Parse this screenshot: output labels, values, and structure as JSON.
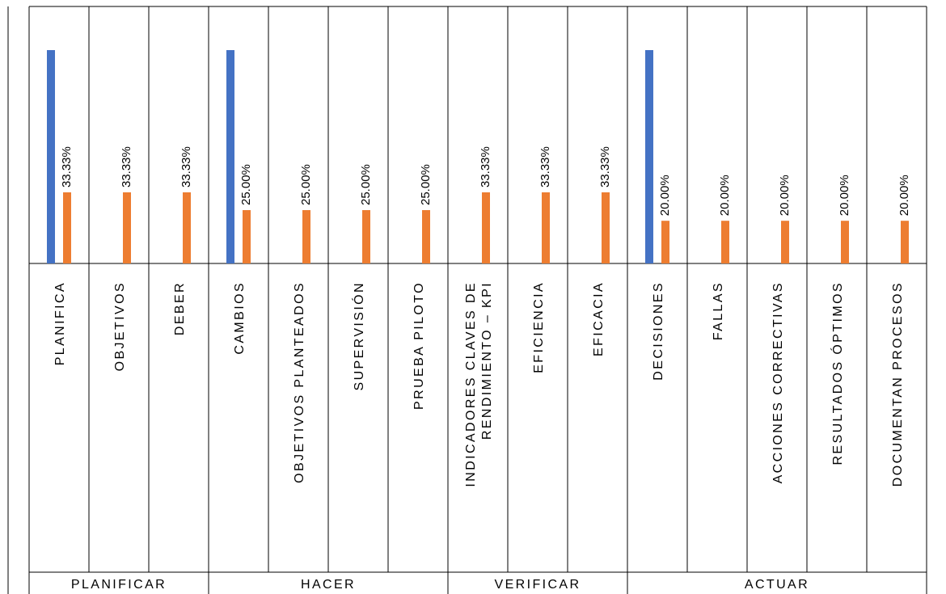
{
  "chart_data": {
    "type": "bar",
    "groups": [
      {
        "label": "PLANIFICAR",
        "categories": [
          "PLANIFICA",
          "OBJETIVOS",
          "DEBER"
        ]
      },
      {
        "label": "HACER",
        "categories": [
          "CAMBIOS",
          "OBJETIVOS PLANTEADOS",
          "SUPERVISIÓN",
          "PRUEBA PILOTO"
        ]
      },
      {
        "label": "VERIFICAR",
        "categories": [
          [
            "INDICADORES CLAVES DE",
            "RENDIMIENTO – KPI"
          ],
          "EFICIENCIA",
          "EFICACIA"
        ]
      },
      {
        "label": "ACTUAR",
        "categories": [
          "DECISIONES",
          "FALLAS",
          "ACCIONES CORRECTIVAS",
          "RESULTADOS ÓPTIMOS",
          "DOCUMENTAN PROCESOS"
        ]
      }
    ],
    "series": [
      {
        "color": "#4472C4",
        "values": [
          1,
          null,
          null,
          1,
          null,
          null,
          null,
          null,
          null,
          null,
          1,
          null,
          null,
          null,
          null
        ]
      },
      {
        "color": "#ED7D31",
        "values": [
          0.3333,
          0.3333,
          0.3333,
          0.25,
          0.25,
          0.25,
          0.25,
          0.3333,
          0.3333,
          0.3333,
          0.2,
          0.2,
          0.2,
          0.2,
          0.2
        ]
      }
    ],
    "data_labels": [
      "33.33%",
      "33.33%",
      "33.33%",
      "25.00%",
      "25.00%",
      "25.00%",
      "25.00%",
      "33.33%",
      "33.33%",
      "33.33%",
      "20.00%",
      "20.00%",
      "20.00%",
      "20.00%",
      "20.00%"
    ],
    "ylim": [
      0,
      1
    ],
    "grid": false,
    "legend": "none"
  }
}
